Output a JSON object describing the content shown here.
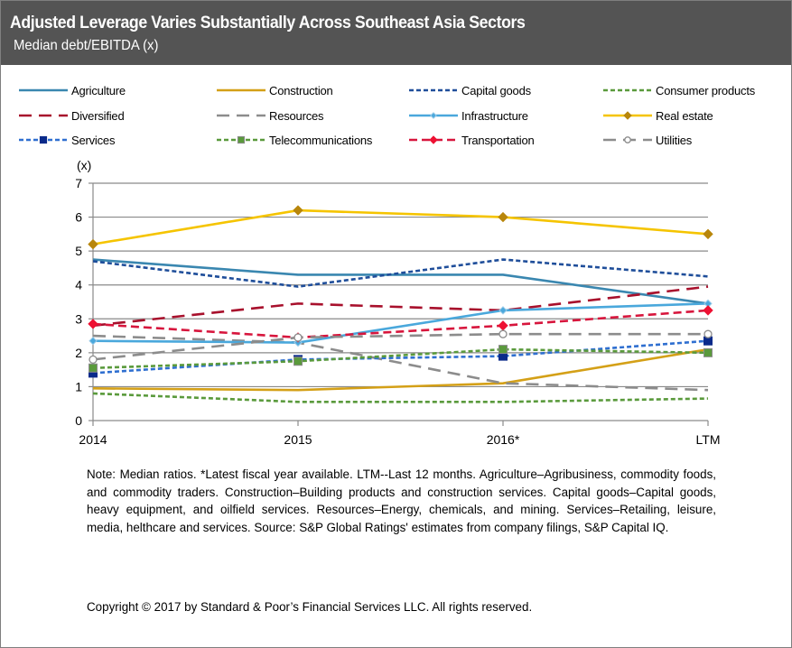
{
  "header": {
    "title": "Adjusted Leverage Varies Substantially Across  Southeast Asia Sectors",
    "subtitle": "Median debt/EBITDA (x)"
  },
  "chart_data": {
    "type": "line",
    "title": "Adjusted Leverage Varies Substantially Across Southeast Asia Sectors",
    "subtitle": "Median debt/EBITDA (x)",
    "xlabel": "",
    "ylabel": "(x)",
    "categories": [
      "2014",
      "2015",
      "2016*",
      "LTM"
    ],
    "ylim": [
      0,
      7
    ],
    "yticks": [
      "0",
      "1",
      "2",
      "3",
      "4",
      "5",
      "6",
      "7"
    ],
    "grid": true,
    "legend_position": "top",
    "series": [
      {
        "name": "Agriculture",
        "color": "#3a87b0",
        "dash": "solid",
        "marker": "none",
        "values": [
          4.75,
          4.3,
          4.3,
          3.45
        ]
      },
      {
        "name": "Construction",
        "color": "#d4a017",
        "dash": "solid",
        "marker": "none",
        "values": [
          0.95,
          0.9,
          1.1,
          2.1
        ]
      },
      {
        "name": "Capital goods",
        "color": "#1f4e9a",
        "dash": "short",
        "marker": "none",
        "values": [
          4.7,
          3.95,
          4.75,
          4.25
        ]
      },
      {
        "name": "Consumer products",
        "color": "#5a9a3c",
        "dash": "short",
        "marker": "none",
        "values": [
          0.8,
          0.55,
          0.55,
          0.65
        ]
      },
      {
        "name": "Diversified",
        "color": "#a8102c",
        "dash": "long",
        "marker": "none",
        "values": [
          2.8,
          3.45,
          3.25,
          3.95
        ]
      },
      {
        "name": "Resources",
        "color": "#8c8c8c",
        "dash": "long",
        "marker": "none",
        "values": [
          2.5,
          2.3,
          1.1,
          0.9
        ]
      },
      {
        "name": "Infrastructure",
        "color": "#4aa8dc",
        "dash": "solid",
        "marker": "diamond-small",
        "values": [
          2.35,
          2.3,
          3.25,
          3.45
        ]
      },
      {
        "name": "Real estate",
        "color": "#f5c400",
        "markerColor": "#b8860b",
        "dash": "solid",
        "marker": "diamond",
        "values": [
          5.2,
          6.2,
          6.0,
          5.5
        ]
      },
      {
        "name": "Services",
        "color": "#2f6fd0",
        "markerColor": "#0a2a8a",
        "dash": "short",
        "marker": "square",
        "values": [
          1.4,
          1.8,
          1.9,
          2.35
        ]
      },
      {
        "name": "Telecommunications",
        "color": "#5a9a3c",
        "markerColor": "#5a9a3c",
        "dash": "short",
        "marker": "square",
        "values": [
          1.55,
          1.75,
          2.1,
          2.0
        ]
      },
      {
        "name": "Transportation",
        "color": "#d7163d",
        "markerColor": "#ee1133",
        "dash": "medium",
        "marker": "diamond",
        "values": [
          2.85,
          2.45,
          2.8,
          3.25
        ]
      },
      {
        "name": "Utilities",
        "color": "#8c8c8c",
        "dash": "long",
        "marker": "circle",
        "values": [
          1.8,
          2.45,
          2.55,
          2.55
        ]
      }
    ]
  },
  "footer": {
    "note": "Note: Median ratios. *Latest fiscal year available. LTM--Last 12 months. Agriculture–Agribusiness, commodity foods, and commodity traders. Construction–Building products and construction services. Capital goods–Capital goods, heavy equipment, and oilfield services. Resources–Energy, chemicals, and mining. Services–Retailing, leisure, media, helthcare and services. Source: S&P Global Ratings' estimates from company filings, S&P Capital IQ.",
    "copyright": "Copyright © 2017 by Standard & Poor’s Financial Services LLC. All rights reserved."
  }
}
